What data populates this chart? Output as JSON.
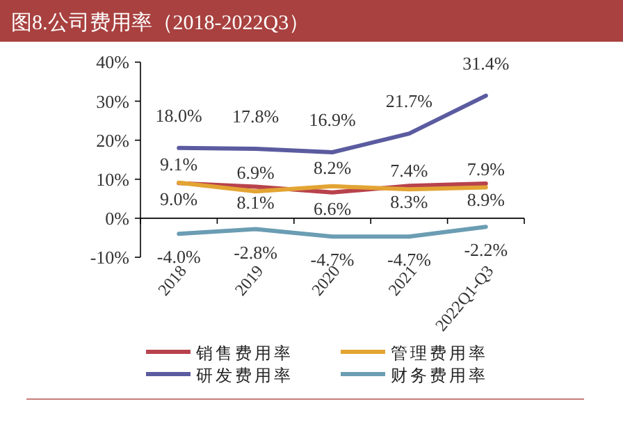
{
  "chart_data": {
    "type": "line",
    "title": "图8.公司费用率（2018-2022Q3）",
    "categories": [
      "2018",
      "2019",
      "2020",
      "2021",
      "2022Q1-Q3"
    ],
    "series": [
      {
        "name": "销售费用率",
        "color": "#b8424c",
        "values": [
          9.0,
          8.1,
          6.6,
          8.3,
          8.9
        ],
        "value_labels": [
          "9.0%",
          "8.1%",
          "6.6%",
          "8.3%",
          "8.9%"
        ]
      },
      {
        "name": "管理费用率",
        "color": "#e3a433",
        "values": [
          9.1,
          6.9,
          8.2,
          7.4,
          7.9
        ],
        "value_labels": [
          "9.1%",
          "6.9%",
          "8.2%",
          "7.4%",
          "7.9%"
        ]
      },
      {
        "name": "研发费用率",
        "color": "#5b5ba0",
        "values": [
          18.0,
          17.8,
          16.9,
          21.7,
          31.4
        ],
        "value_labels": [
          "18.0%",
          "17.8%",
          "16.9%",
          "21.7%",
          "31.4%"
        ]
      },
      {
        "name": "财务费用率",
        "color": "#6b9db3",
        "values": [
          -4.0,
          -2.8,
          -4.7,
          -4.7,
          -2.2
        ],
        "value_labels": [
          "-4.0%",
          "-2.8%",
          "-4.7%",
          "-4.7%",
          "-2.2%"
        ]
      }
    ],
    "ylim": [
      -10,
      40
    ],
    "yticks": [
      {
        "value": -10,
        "label": "-10%"
      },
      {
        "value": 0,
        "label": "0%"
      },
      {
        "value": 10,
        "label": "10%"
      },
      {
        "value": 20,
        "label": "20%"
      },
      {
        "value": 30,
        "label": "30%"
      },
      {
        "value": 40,
        "label": "40%"
      }
    ],
    "legend": "bottom",
    "marker": "none",
    "line_style": "solid"
  }
}
